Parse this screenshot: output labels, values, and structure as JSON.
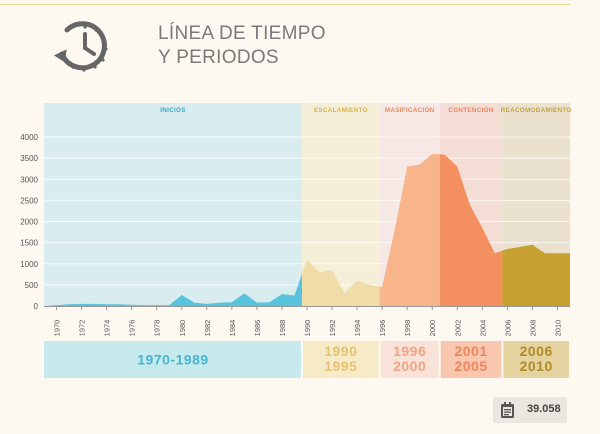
{
  "header": {
    "title_line1": "LÍNEA DE TIEMPO",
    "title_line2": "Y PERIODOS",
    "icon": "clock-history-icon"
  },
  "badge": {
    "icon": "calendar-list-icon",
    "value": "39.058"
  },
  "chart_data": {
    "type": "area",
    "x_start": 1969,
    "x_end": 2011,
    "x": [
      1969,
      1970,
      1971,
      1972,
      1973,
      1974,
      1975,
      1976,
      1977,
      1978,
      1979,
      1980,
      1981,
      1982,
      1983,
      1984,
      1985,
      1986,
      1987,
      1988,
      1989,
      1990,
      1991,
      1992,
      1993,
      1994,
      1995,
      1996,
      1997,
      1998,
      1999,
      2000,
      2001,
      2002,
      2003,
      2004,
      2005,
      2006,
      2007,
      2008,
      2009,
      2010,
      2011
    ],
    "values": [
      0,
      20,
      40,
      50,
      50,
      40,
      40,
      30,
      20,
      20,
      20,
      260,
      80,
      50,
      80,
      90,
      300,
      80,
      90,
      280,
      250,
      1100,
      800,
      850,
      300,
      600,
      500,
      450,
      1800,
      3300,
      3350,
      3600,
      3580,
      3300,
      2400,
      1850,
      1250,
      1350,
      1400,
      1450,
      1250,
      1250,
      1250
    ],
    "xticks": [
      "1970",
      "1972",
      "1974",
      "1976",
      "1978",
      "1980",
      "1982",
      "1984",
      "1986",
      "1988",
      "1990",
      "1992",
      "1994",
      "1996",
      "1998",
      "2000",
      "2002",
      "2004",
      "2006",
      "2008",
      "2010"
    ],
    "yticks": [
      "0",
      "500",
      "1000",
      "1500",
      "2000",
      "2500",
      "3000",
      "3500",
      "4000"
    ],
    "ylim": [
      0,
      4000
    ],
    "grid": true,
    "periods": [
      {
        "label": "INICIOS",
        "start": 1969,
        "end": 1989.6,
        "bg": "#d9edf1",
        "fill": "#58c3dc",
        "label_color": "#3aa6c0",
        "box_bg": "#c6e9ee",
        "box_color": "#48b5cc",
        "years": [
          "1970-1989"
        ]
      },
      {
        "label": "ESCALAMIENTO",
        "start": 1989.6,
        "end": 1995.8,
        "bg": "#f6efd8",
        "fill": "#efdca8",
        "label_color": "#d9b24c",
        "box_bg": "#f6ebc6",
        "box_color": "#e3c270",
        "years": [
          "1990",
          "1995"
        ]
      },
      {
        "label": "MASIFICACIÓN",
        "start": 1995.8,
        "end": 2000.6,
        "bg": "#f6e8e4",
        "fill": "#f8b48b",
        "label_color": "#e88a62",
        "box_bg": "#f9e3d8",
        "box_color": "#f1a383",
        "years": [
          "1996",
          "2000"
        ]
      },
      {
        "label": "CONTENCIÓN",
        "start": 2000.6,
        "end": 2005.6,
        "bg": "#f4ddd4",
        "fill": "#f4905f",
        "label_color": "#ee8360",
        "box_bg": "#f9c7ad",
        "box_color": "#ee8560",
        "years": [
          "2001",
          "2005"
        ]
      },
      {
        "label": "REACOMODAMIENTO",
        "start": 2005.6,
        "end": 2011,
        "bg": "#eae2ce",
        "fill": "#c6a131",
        "label_color": "#c4a13c",
        "box_bg": "#e4d39e",
        "box_color": "#b08a26",
        "years": [
          "2006",
          "2010"
        ]
      }
    ]
  }
}
